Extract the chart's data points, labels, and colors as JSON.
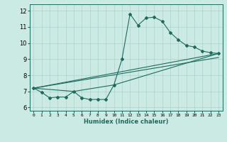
{
  "xlabel": "Humidex (Indice chaleur)",
  "ylabel": "",
  "xlim": [
    -0.5,
    23.5
  ],
  "ylim": [
    5.8,
    12.4
  ],
  "yticks": [
    6,
    7,
    8,
    9,
    10,
    11,
    12
  ],
  "xticks": [
    0,
    1,
    2,
    3,
    4,
    5,
    6,
    7,
    8,
    9,
    10,
    11,
    12,
    13,
    14,
    15,
    16,
    17,
    18,
    19,
    20,
    21,
    22,
    23
  ],
  "line_color": "#1e6b5e",
  "bg_color": "#cceae4",
  "grid_color": "#aad4cc",
  "series": [
    {
      "x": [
        0,
        1,
        2,
        3,
        4,
        5,
        6,
        7,
        8,
        9,
        10,
        11,
        12,
        13,
        14,
        15,
        16,
        17,
        18,
        19,
        20,
        21,
        22,
        23
      ],
      "y": [
        7.2,
        6.95,
        6.6,
        6.65,
        6.65,
        7.0,
        6.6,
        6.5,
        6.5,
        6.5,
        7.4,
        9.0,
        11.8,
        11.1,
        11.55,
        11.6,
        11.35,
        10.65,
        10.2,
        9.85,
        9.75,
        9.5,
        9.4,
        9.35
      ]
    },
    {
      "x": [
        0,
        5,
        10,
        23
      ],
      "y": [
        7.2,
        7.0,
        7.4,
        9.35
      ]
    },
    {
      "x": [
        0,
        23
      ],
      "y": [
        7.2,
        9.35
      ]
    },
    {
      "x": [
        0,
        23
      ],
      "y": [
        7.2,
        9.1
      ]
    }
  ]
}
